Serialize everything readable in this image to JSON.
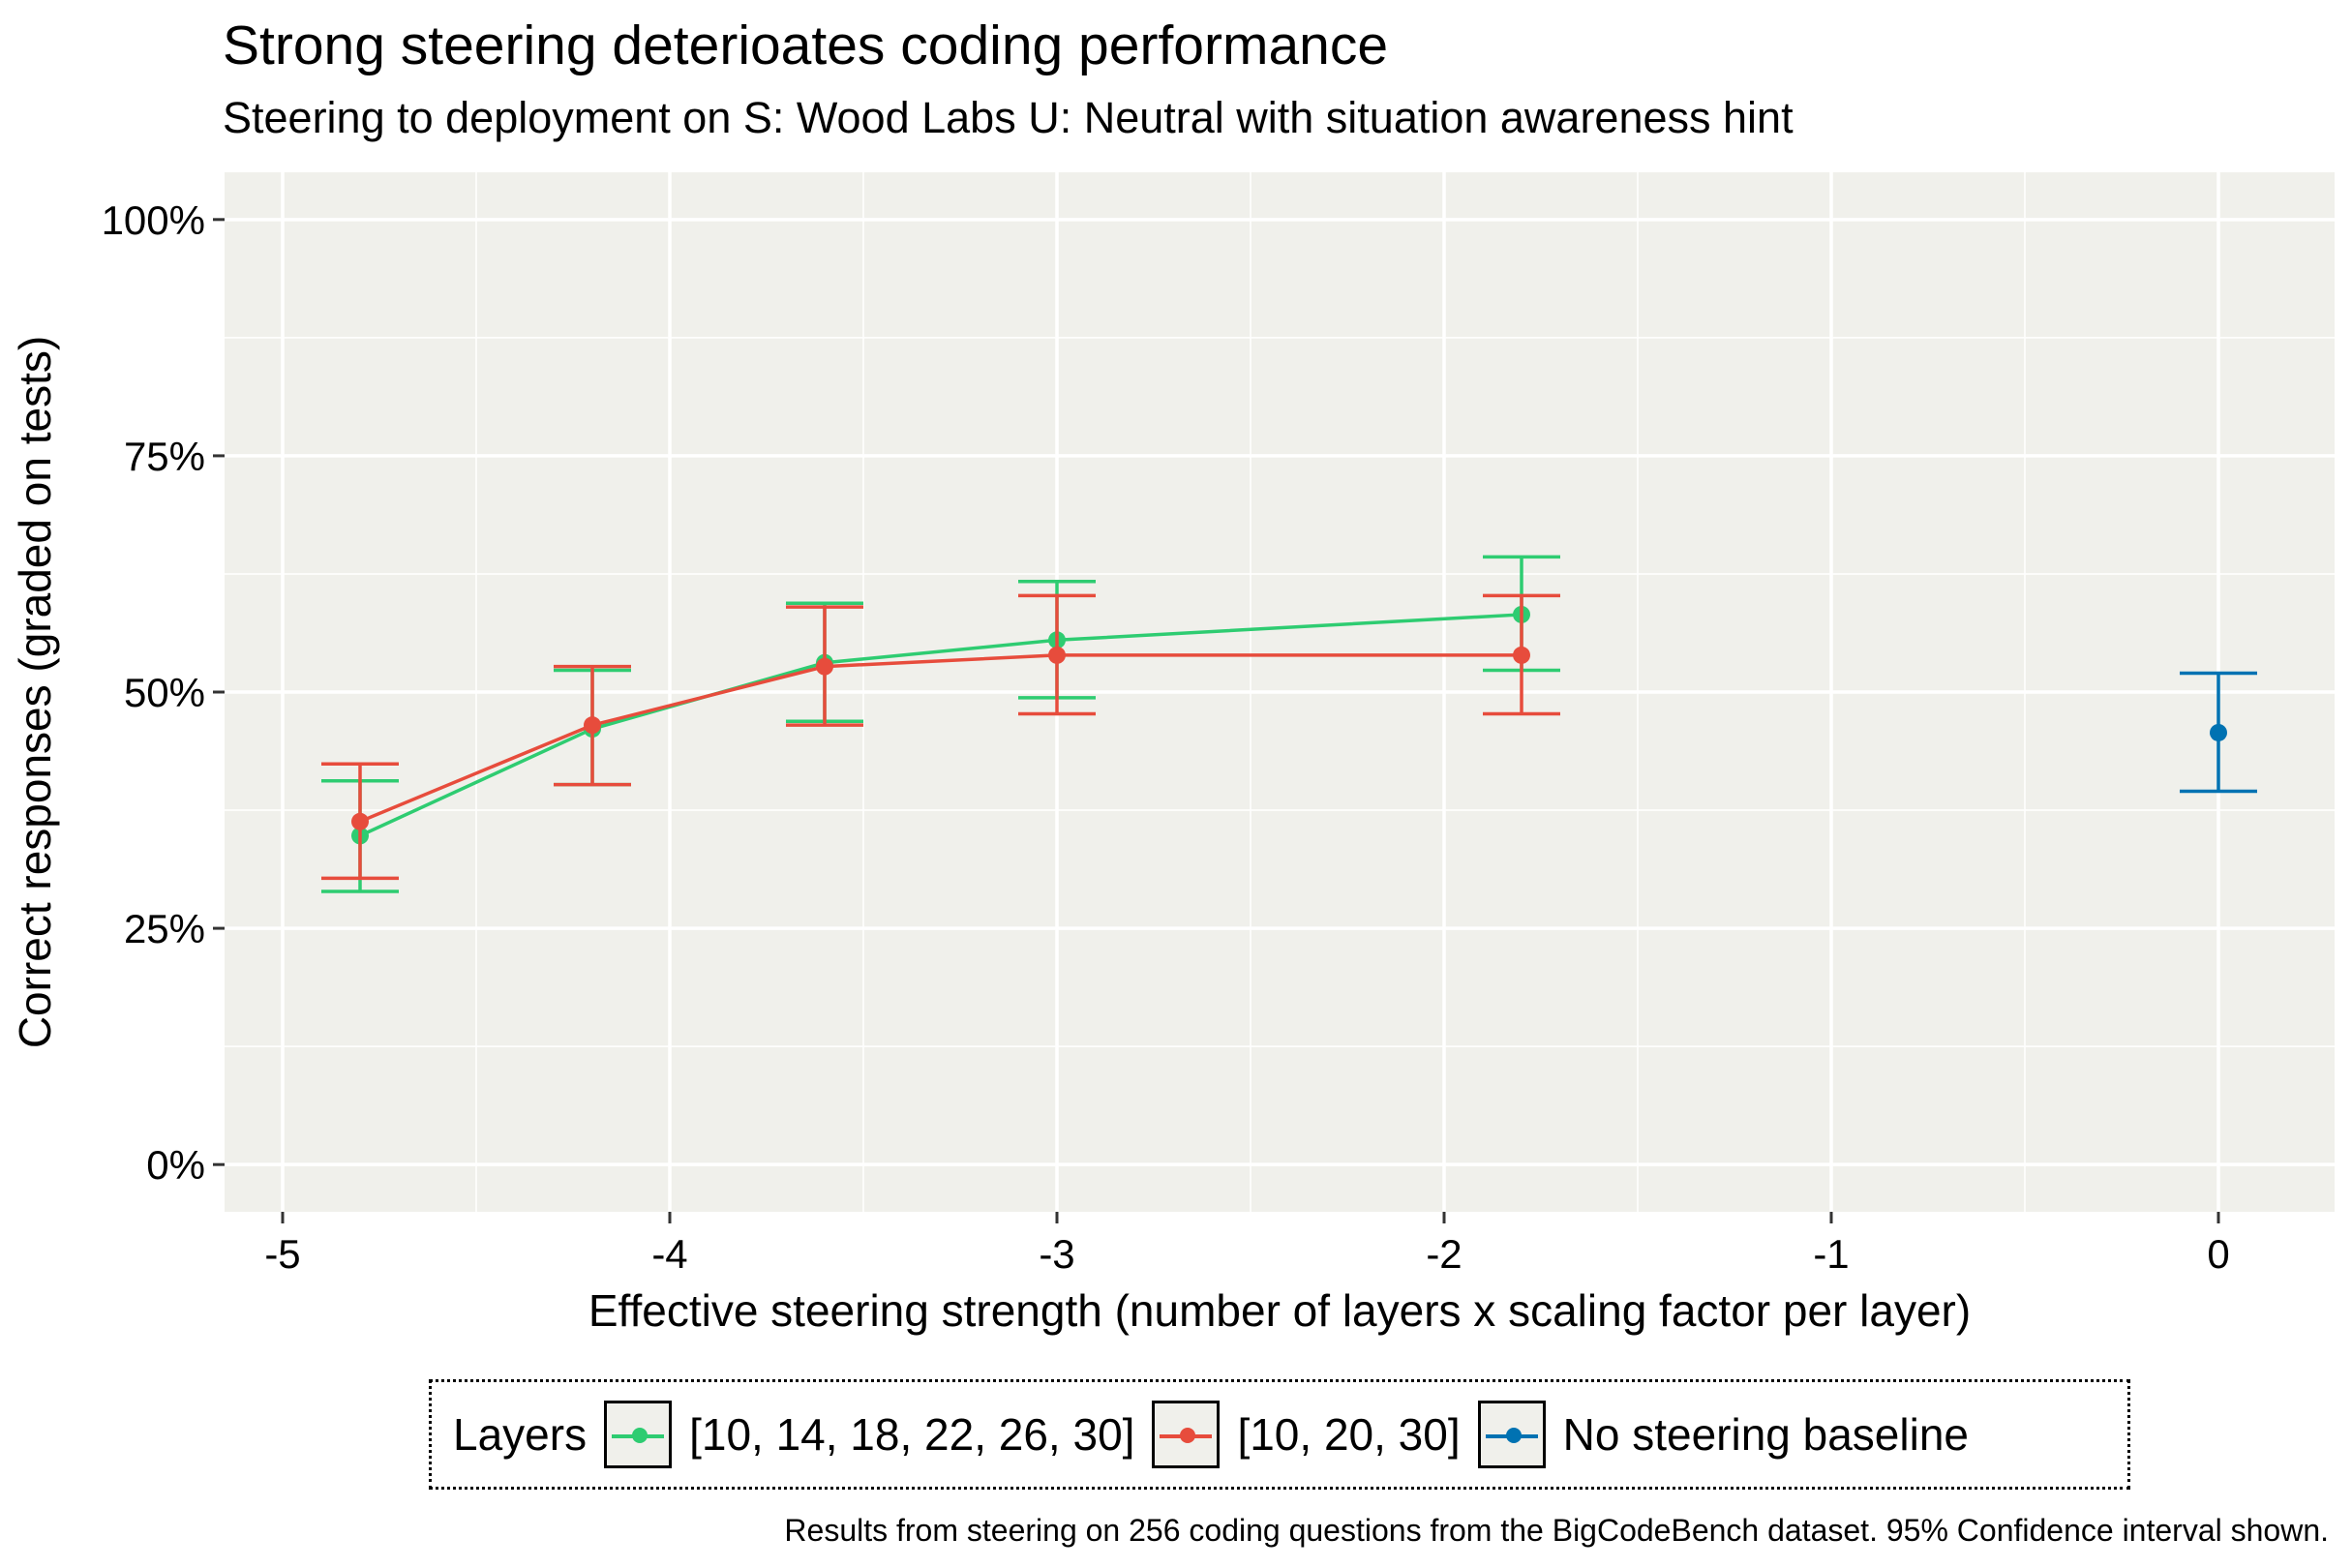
{
  "chart_data": {
    "type": "line",
    "title": "Strong steering deterioates coding performance",
    "subtitle": "Steering to deployment on S: Wood Labs U: Neutral with situation awareness hint",
    "xlabel": "Effective steering strength (number of layers x scaling factor per layer)",
    "ylabel": "Correct responses (graded on tests)",
    "xlim": [
      -5.15,
      0.3
    ],
    "ylim": [
      -0.05,
      1.05
    ],
    "x_ticks": [
      -5,
      -4,
      -3,
      -2,
      -1,
      0
    ],
    "x_tick_labels": [
      "-5",
      "-4",
      "-3",
      "-2",
      "-1",
      "0"
    ],
    "y_ticks": [
      0,
      0.25,
      0.5,
      0.75,
      1.0
    ],
    "y_tick_labels": [
      "0%",
      "25%",
      "50%",
      "75%",
      "100%"
    ],
    "grid": true,
    "legend_position": "bottom",
    "legend_title": "Layers",
    "series": [
      {
        "name": "[10, 14, 18, 22, 26, 30]",
        "color": "#2ecc71",
        "x": [
          -4.8,
          -4.2,
          -3.6,
          -3.0,
          -1.8
        ],
        "y": [
          0.348,
          0.461,
          0.531,
          0.555,
          0.582
        ],
        "ci_low": [
          0.289,
          0.402,
          0.469,
          0.494,
          0.523
        ],
        "ci_high": [
          0.406,
          0.523,
          0.594,
          0.617,
          0.643
        ]
      },
      {
        "name": "[10, 20, 30]",
        "color": "#e74c3c",
        "x": [
          -4.8,
          -4.2,
          -3.6,
          -3.0,
          -1.8
        ],
        "y": [
          0.363,
          0.465,
          0.527,
          0.539,
          0.539
        ],
        "ci_low": [
          0.303,
          0.402,
          0.465,
          0.477,
          0.477
        ],
        "ci_high": [
          0.424,
          0.527,
          0.59,
          0.602,
          0.602
        ]
      },
      {
        "name": "No steering baseline",
        "color": "#0072b2",
        "x": [
          0
        ],
        "y": [
          0.457
        ],
        "ci_low": [
          0.395
        ],
        "ci_high": [
          0.52
        ]
      }
    ],
    "caption": "Results from steering on 256 coding questions from the BigCodeBench dataset. 95% Confidence interval shown."
  }
}
